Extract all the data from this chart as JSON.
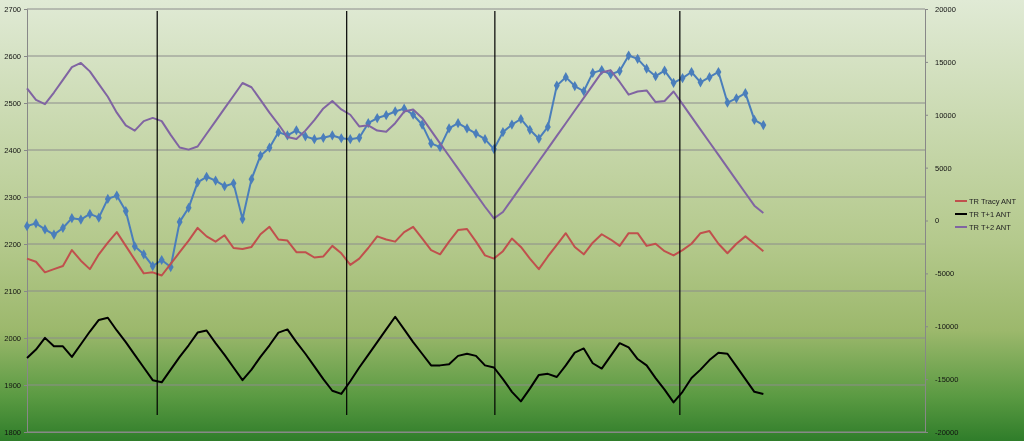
{
  "chart_data": {
    "type": "line",
    "categories": [
      null,
      null,
      null,
      null,
      null,
      null,
      null,
      null,
      null,
      null,
      null,
      null,
      null,
      null,
      null,
      null,
      null,
      null,
      null,
      null,
      null,
      null,
      null,
      null,
      null,
      null,
      null,
      null,
      null,
      null,
      null,
      null,
      null,
      null,
      null,
      null,
      null,
      null,
      null,
      null,
      null,
      null,
      null,
      null,
      null,
      null,
      null,
      null,
      null,
      null,
      null,
      null,
      null,
      null,
      null,
      null,
      null,
      null,
      null,
      null,
      null,
      null,
      null,
      null,
      null,
      null,
      null,
      null,
      null,
      null,
      null,
      null,
      null,
      null,
      null,
      null,
      null,
      null,
      null,
      null,
      null,
      null,
      null,
      null,
      null,
      null,
      null,
      null,
      null,
      null,
      null,
      null,
      null,
      null,
      null,
      null,
      null,
      null,
      null,
      null,
      null
    ],
    "ylim": [
      1800,
      2700
    ],
    "yticks": [
      1800,
      1900,
      2000,
      2100,
      2200,
      2300,
      2400,
      2500,
      2600,
      2700
    ],
    "y2lim": [
      -20000,
      20000
    ],
    "y2ticks": [
      -20000,
      -15000,
      -10000,
      -5000,
      0,
      5000,
      10000,
      15000,
      20000
    ],
    "grid": "y",
    "legend": "right",
    "series": [
      {
        "color": "#4a7ebb",
        "marker": "diamond",
        "values": [
          2238,
          2244,
          2231,
          2220,
          2234,
          2255,
          2252,
          2264,
          2256,
          2296,
          2303,
          2270,
          2195,
          2178,
          2153,
          2166,
          2151,
          2247,
          2277,
          2331,
          2343,
          2335,
          2323,
          2329,
          2253,
          2338,
          2388,
          2405,
          2438,
          2431,
          2442,
          2429,
          2423,
          2426,
          2431,
          2425,
          2423,
          2426,
          2457,
          2468,
          2474,
          2482,
          2488,
          2475,
          2454,
          2414,
          2406,
          2446,
          2457,
          2446,
          2435,
          2423,
          2402,
          2438,
          2454,
          2466,
          2443,
          2424,
          2449,
          2537,
          2555,
          2536,
          2525,
          2564,
          2570,
          2561,
          2568,
          2601,
          2594,
          2573,
          2557,
          2569,
          2543,
          2553,
          2566,
          2544,
          2555,
          2566,
          2501,
          2510,
          2521,
          2464,
          2453,
          null,
          null,
          null,
          null,
          null,
          null,
          null,
          null,
          null,
          null,
          null,
          null,
          null,
          null,
          null,
          null,
          null,
          null
        ]
      },
      {
        "name": "TR Tracy ANT",
        "color": "#c0504d",
        "axis": "y2",
        "values": [
          -3600,
          -3900,
          -4900,
          -4600,
          -4300,
          -2800,
          -3800,
          -4600,
          -3200,
          -2100,
          -1100,
          -2400,
          -3700,
          -5000,
          -4900,
          -5200,
          -4100,
          -3000,
          -1900,
          -700,
          -1500,
          -2000,
          -1400,
          -2600,
          -2700,
          -2500,
          -1300,
          -600,
          -1800,
          -1900,
          -3000,
          -3000,
          -3500,
          -3400,
          -2400,
          -3100,
          -4200,
          -3600,
          -2600,
          -1500,
          -1800,
          -2000,
          -1100,
          -600,
          -1700,
          -2800,
          -3200,
          -2000,
          -900,
          -800,
          -2000,
          -3300,
          -3600,
          -2900,
          -1700,
          -2500,
          -3600,
          -4600,
          -3400,
          -2300,
          -1200,
          -2500,
          -3200,
          -2100,
          -1300,
          -1800,
          -2400,
          -1200,
          -1200,
          -2400,
          -2200,
          -2900,
          -3300,
          -2800,
          -2200,
          -1200,
          -1000,
          -2200,
          -3100,
          -2200,
          -1500,
          -2200,
          -2900,
          null,
          null,
          null,
          null,
          null,
          null,
          null,
          null,
          null,
          null,
          null,
          null,
          null,
          null,
          null,
          null,
          null,
          null
        ]
      },
      {
        "name": "TR T+1 ANT",
        "color": "#000000",
        "axis": "y2",
        "values": [
          -13000,
          -12200,
          -11100,
          -11900,
          -11900,
          -12900,
          -11700,
          -10500,
          -9400,
          -9200,
          -10400,
          -11500,
          -12700,
          -13900,
          -15100,
          -15300,
          -14100,
          -12900,
          -11800,
          -10600,
          -10400,
          -11600,
          -12700,
          -13900,
          -15100,
          -14100,
          -12900,
          -11800,
          -10600,
          -10300,
          -11500,
          -12600,
          -13800,
          -15000,
          -16100,
          -16400,
          -15200,
          -13900,
          -12700,
          -11500,
          -10300,
          -9100,
          -10300,
          -11500,
          -12600,
          -13700,
          -13700,
          -13600,
          -12800,
          -12600,
          -12800,
          -13700,
          -13900,
          -15000,
          -16200,
          -17100,
          -15900,
          -14600,
          -14500,
          -14800,
          -13700,
          -12500,
          -12100,
          -13500,
          -14000,
          -12800,
          -11600,
          -12000,
          -13100,
          -13700,
          -14900,
          -16000,
          -17200,
          -16200,
          -14900,
          -14100,
          -13200,
          -12500,
          -12600,
          -13800,
          -15000,
          -16200,
          -16400,
          null,
          null,
          null,
          null,
          null,
          null,
          null,
          null,
          null,
          null,
          null,
          null,
          null,
          null,
          null,
          null,
          null,
          null
        ]
      },
      {
        "name": "TR T+2 ANT",
        "color": "#8064a2",
        "axis": "y2",
        "values": [
          12500,
          11400,
          11000,
          12100,
          13300,
          14500,
          14900,
          14100,
          12900,
          11700,
          10200,
          9000,
          8500,
          9400,
          9700,
          9400,
          8100,
          6900,
          6700,
          7000,
          8200,
          9400,
          10600,
          11800,
          13000,
          12600,
          11400,
          10200,
          9100,
          7900,
          7700,
          8500,
          9500,
          10600,
          11300,
          10500,
          10000,
          8900,
          9000,
          8500,
          8400,
          9200,
          10300,
          10500,
          9700,
          8500,
          7300,
          6100,
          4900,
          3700,
          2500,
          1300,
          200,
          800,
          2000,
          3200,
          4400,
          5600,
          6800,
          8000,
          9200,
          10400,
          11600,
          12800,
          14000,
          14200,
          13100,
          11900,
          12200,
          12300,
          11200,
          11300,
          12200,
          11000,
          9800,
          8600,
          7400,
          6200,
          5000,
          3800,
          2600,
          1400,
          700,
          null,
          null,
          null,
          null,
          null,
          null,
          null,
          null,
          null,
          null,
          null,
          null,
          null,
          null,
          null,
          null,
          null,
          null
        ]
      }
    ]
  }
}
